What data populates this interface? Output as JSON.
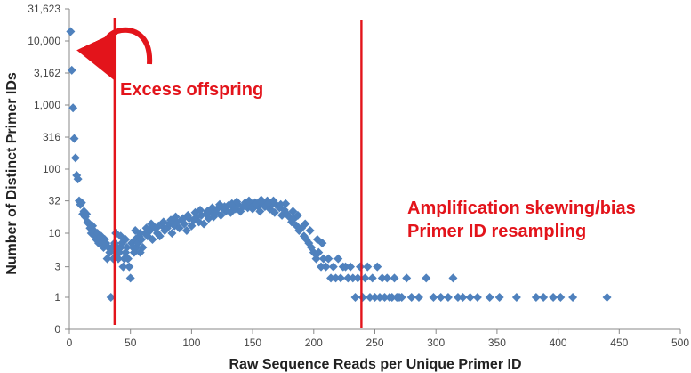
{
  "chart_data": {
    "type": "scatter",
    "title": "",
    "xlabel": "Raw Sequence Reads per Unique Primer ID",
    "ylabel": "Number of Distinct Primer IDs",
    "xlim": [
      0,
      500
    ],
    "x_ticks": [
      0,
      50,
      100,
      150,
      200,
      250,
      300,
      350,
      400,
      450,
      500
    ],
    "y_scale": "log (shifted: 0 at baseline)",
    "y_ticks": [
      0,
      1,
      3,
      10,
      32,
      100,
      316,
      1000,
      3162,
      10000,
      31623
    ],
    "y_tick_labels": [
      "0",
      "1",
      "3",
      "10",
      "32",
      "100",
      "316",
      "1,000",
      "3,162",
      "10,000",
      "31,623"
    ],
    "grid": false,
    "legend": "none",
    "marker_color": "#4f81bd",
    "annotation_color": "#e3141b",
    "vertical_lines": [
      37,
      239
    ],
    "annotations": [
      {
        "text": "Excess offspring",
        "near_x": 43
      },
      {
        "text": "Amplification skewing/bias",
        "near_x": 270
      },
      {
        "text": "Primer ID resampling",
        "near_x": 270
      }
    ],
    "series": [
      {
        "points": [
          [
            1,
            14000
          ],
          [
            2,
            3500
          ],
          [
            3,
            900
          ],
          [
            4,
            300
          ],
          [
            5,
            150
          ],
          [
            6,
            80
          ],
          [
            7,
            70
          ],
          [
            8,
            32
          ],
          [
            9,
            28
          ],
          [
            10,
            30
          ],
          [
            11,
            20
          ],
          [
            12,
            22
          ],
          [
            13,
            18
          ],
          [
            14,
            20
          ],
          [
            15,
            15
          ],
          [
            16,
            14
          ],
          [
            17,
            12
          ],
          [
            18,
            10
          ],
          [
            19,
            13
          ],
          [
            20,
            11
          ],
          [
            21,
            9
          ],
          [
            22,
            8
          ],
          [
            23,
            10
          ],
          [
            24,
            7
          ],
          [
            25,
            8
          ],
          [
            26,
            9
          ],
          [
            27,
            7
          ],
          [
            28,
            6
          ],
          [
            29,
            8
          ],
          [
            30,
            7
          ],
          [
            31,
            4
          ],
          [
            32,
            6
          ],
          [
            33,
            5
          ],
          [
            34,
            1
          ],
          [
            35,
            6
          ],
          [
            36,
            4
          ],
          [
            37,
            7
          ],
          [
            38,
            5
          ],
          [
            39,
            6
          ],
          [
            40,
            4
          ],
          [
            41,
            5
          ],
          [
            42,
            6
          ],
          [
            43,
            7
          ],
          [
            44,
            3
          ],
          [
            45,
            4
          ],
          [
            46,
            5
          ],
          [
            47,
            6
          ],
          [
            48,
            4
          ],
          [
            49,
            3
          ],
          [
            50,
            2
          ],
          [
            51,
            7
          ],
          [
            52,
            6
          ],
          [
            53,
            5
          ],
          [
            54,
            8
          ],
          [
            55,
            6
          ],
          [
            56,
            7
          ],
          [
            57,
            9
          ],
          [
            58,
            5
          ],
          [
            59,
            8
          ],
          [
            60,
            6
          ],
          [
            62,
            10
          ],
          [
            64,
            9
          ],
          [
            66,
            11
          ],
          [
            68,
            8
          ],
          [
            70,
            12
          ],
          [
            72,
            10
          ],
          [
            74,
            9
          ],
          [
            76,
            13
          ],
          [
            78,
            11
          ],
          [
            80,
            12
          ],
          [
            82,
            14
          ],
          [
            84,
            10
          ],
          [
            86,
            13
          ],
          [
            88,
            15
          ],
          [
            90,
            12
          ],
          [
            92,
            16
          ],
          [
            94,
            14
          ],
          [
            96,
            11
          ],
          [
            98,
            17
          ],
          [
            100,
            13
          ],
          [
            102,
            16
          ],
          [
            104,
            18
          ],
          [
            106,
            15
          ],
          [
            108,
            19
          ],
          [
            110,
            14
          ],
          [
            112,
            20
          ],
          [
            114,
            17
          ],
          [
            116,
            22
          ],
          [
            118,
            18
          ],
          [
            120,
            21
          ],
          [
            122,
            25
          ],
          [
            124,
            19
          ],
          [
            126,
            24
          ],
          [
            128,
            22
          ],
          [
            130,
            27
          ],
          [
            132,
            21
          ],
          [
            134,
            26
          ],
          [
            136,
            24
          ],
          [
            138,
            28
          ],
          [
            140,
            22
          ],
          [
            142,
            26
          ],
          [
            144,
            30
          ],
          [
            146,
            25
          ],
          [
            148,
            28
          ],
          [
            150,
            24
          ],
          [
            152,
            30
          ],
          [
            154,
            27
          ],
          [
            156,
            22
          ],
          [
            158,
            29
          ],
          [
            160,
            26
          ],
          [
            162,
            32
          ],
          [
            164,
            24
          ],
          [
            166,
            28
          ],
          [
            168,
            21
          ],
          [
            170,
            27
          ],
          [
            172,
            25
          ],
          [
            174,
            19
          ],
          [
            176,
            23
          ],
          [
            178,
            20
          ],
          [
            180,
            18
          ],
          [
            182,
            15
          ],
          [
            184,
            17
          ],
          [
            186,
            13
          ],
          [
            188,
            11
          ],
          [
            190,
            12
          ],
          [
            192,
            9
          ],
          [
            194,
            8
          ],
          [
            196,
            7
          ],
          [
            198,
            6
          ],
          [
            200,
            5
          ],
          [
            202,
            4
          ],
          [
            204,
            5
          ],
          [
            206,
            3
          ],
          [
            208,
            4
          ],
          [
            210,
            3
          ],
          [
            212,
            4
          ],
          [
            214,
            2
          ],
          [
            216,
            3
          ],
          [
            218,
            2
          ],
          [
            220,
            4
          ],
          [
            222,
            2
          ],
          [
            224,
            3
          ],
          [
            226,
            3
          ],
          [
            228,
            2
          ],
          [
            230,
            3
          ],
          [
            232,
            2
          ],
          [
            234,
            1
          ],
          [
            236,
            2
          ],
          [
            238,
            3
          ],
          [
            240,
            1
          ],
          [
            242,
            2
          ],
          [
            244,
            3
          ],
          [
            246,
            1
          ],
          [
            248,
            2
          ],
          [
            250,
            1
          ],
          [
            252,
            3
          ],
          [
            254,
            1
          ],
          [
            256,
            2
          ],
          [
            258,
            1
          ],
          [
            260,
            2
          ],
          [
            262,
            1
          ],
          [
            264,
            1
          ],
          [
            266,
            2
          ],
          [
            268,
            1
          ],
          [
            270,
            1
          ],
          [
            272,
            1
          ],
          [
            276,
            2
          ],
          [
            280,
            1
          ],
          [
            286,
            1
          ],
          [
            292,
            2
          ],
          [
            298,
            1
          ],
          [
            304,
            1
          ],
          [
            310,
            1
          ],
          [
            314,
            2
          ],
          [
            318,
            1
          ],
          [
            322,
            1
          ],
          [
            328,
            1
          ],
          [
            334,
            1
          ],
          [
            344,
            1
          ],
          [
            352,
            1
          ],
          [
            366,
            1
          ],
          [
            382,
            1
          ],
          [
            388,
            1
          ],
          [
            396,
            1
          ],
          [
            402,
            1
          ],
          [
            412,
            1
          ],
          [
            440,
            1
          ],
          [
            38,
            10
          ],
          [
            42,
            9
          ],
          [
            46,
            8
          ],
          [
            54,
            11
          ],
          [
            58,
            10
          ],
          [
            63,
            12
          ],
          [
            67,
            14
          ],
          [
            73,
            13
          ],
          [
            77,
            15
          ],
          [
            83,
            16
          ],
          [
            87,
            18
          ],
          [
            93,
            17
          ],
          [
            97,
            19
          ],
          [
            103,
            21
          ],
          [
            107,
            23
          ],
          [
            113,
            22
          ],
          [
            117,
            25
          ],
          [
            123,
            28
          ],
          [
            127,
            26
          ],
          [
            133,
            29
          ],
          [
            137,
            31
          ],
          [
            143,
            27
          ],
          [
            147,
            32
          ],
          [
            153,
            29
          ],
          [
            157,
            33
          ],
          [
            163,
            30
          ],
          [
            167,
            32
          ],
          [
            173,
            28
          ],
          [
            177,
            29
          ],
          [
            183,
            22
          ],
          [
            187,
            19
          ],
          [
            193,
            14
          ],
          [
            197,
            11
          ],
          [
            203,
            8
          ],
          [
            207,
            7
          ]
        ]
      }
    ]
  }
}
